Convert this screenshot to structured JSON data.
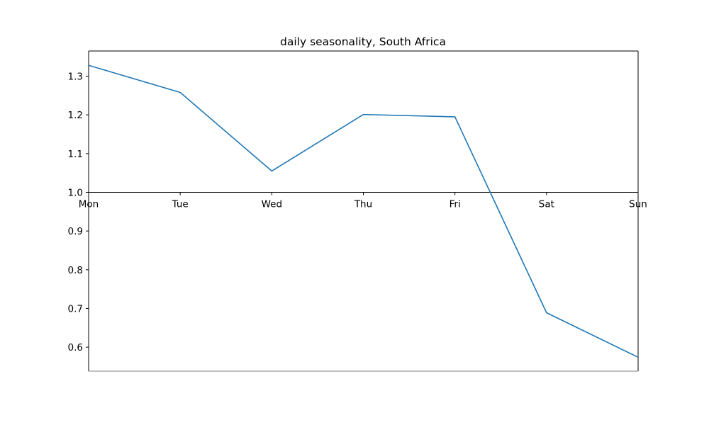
{
  "chart_data": {
    "type": "line",
    "title": "daily seasonality, South Africa",
    "xlabel": "",
    "ylabel": "",
    "categories": [
      "Mon",
      "Tue",
      "Wed",
      "Thu",
      "Fri",
      "Sat",
      "Sun"
    ],
    "series": [
      {
        "values": [
          1.328,
          1.258,
          1.055,
          1.201,
          1.195,
          0.689,
          0.574
        ]
      }
    ],
    "ylim": [
      0.538,
      1.365
    ],
    "yticks": [
      0.6,
      0.7,
      0.8,
      0.9,
      1.0,
      1.1,
      1.2,
      1.3
    ],
    "x_axis_crosses_at": 1.0,
    "grid": false,
    "colors": {
      "line": "#1f77b4",
      "axis": "#000000"
    }
  }
}
